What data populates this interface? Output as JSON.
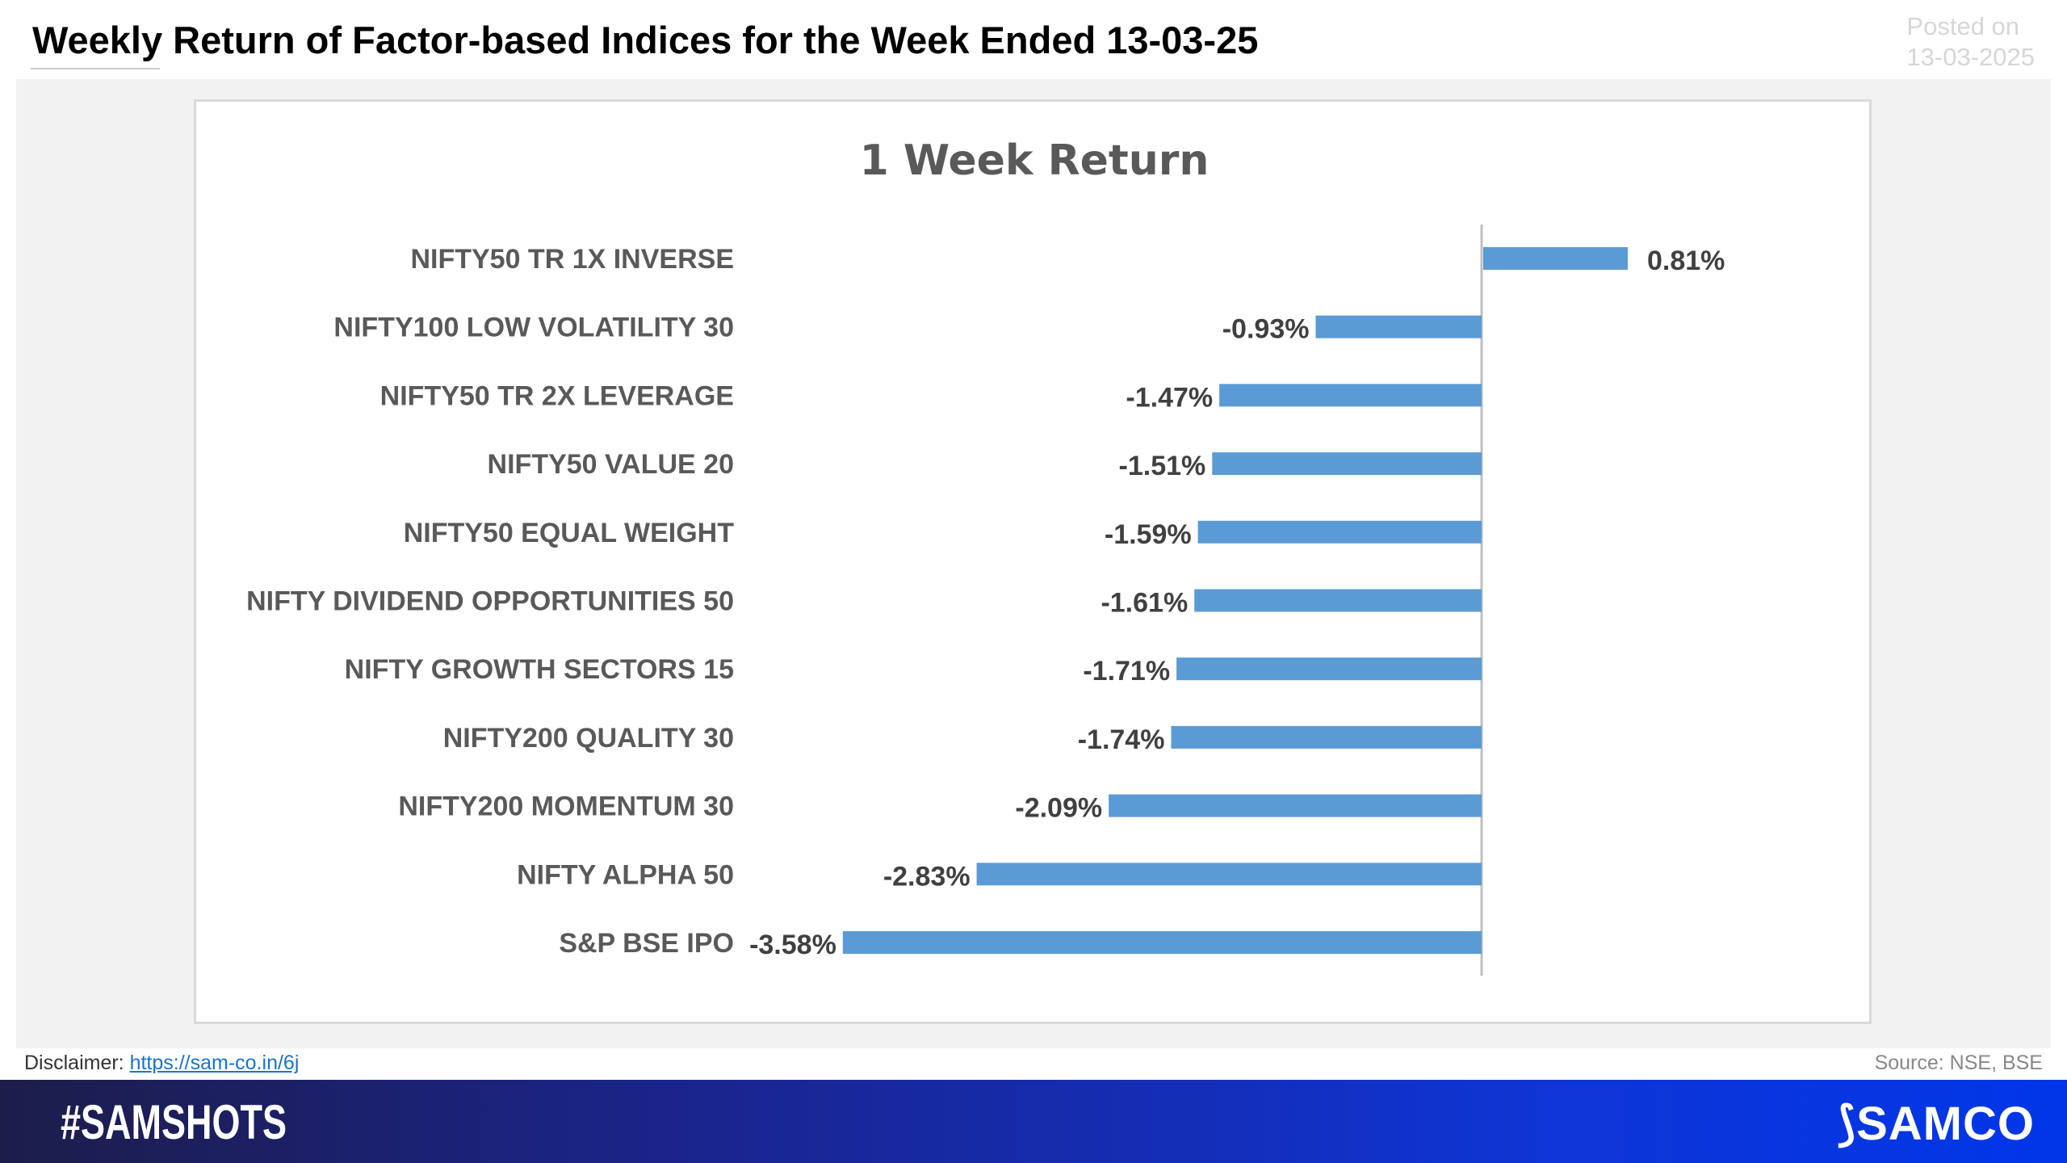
{
  "header": {
    "title": "Weekly Return of Factor-based Indices for the Week Ended 13-03-25",
    "posted_label": "Posted on",
    "posted_date": "13-03-2025"
  },
  "footer": {
    "disclaimer_label": "Disclaimer:",
    "disclaimer_link": "https://sam-co.in/6j",
    "source": "Source: NSE, BSE",
    "hashtag": "#SAMSHOTS",
    "logo": "SAMCO"
  },
  "colors": {
    "bar": "#5b9bd5",
    "panel": "#f2f2f2"
  },
  "chart_data": {
    "type": "bar",
    "orientation": "horizontal",
    "title": "1 Week Return",
    "xlabel": "",
    "ylabel": "",
    "categories": [
      "NIFTY50 TR 1X INVERSE",
      "NIFTY100 LOW VOLATILITY 30",
      "NIFTY50 TR 2X LEVERAGE",
      "NIFTY50 VALUE 20",
      "NIFTY50 EQUAL WEIGHT",
      "NIFTY DIVIDEND OPPORTUNITIES 50",
      "NIFTY GROWTH SECTORS 15",
      "NIFTY200 QUALITY 30",
      "NIFTY200 MOMENTUM 30",
      "NIFTY ALPHA 50",
      "S&P BSE IPO"
    ],
    "values": [
      0.81,
      -0.93,
      -1.47,
      -1.51,
      -1.59,
      -1.61,
      -1.71,
      -1.74,
      -2.09,
      -2.83,
      -3.58
    ],
    "labels": [
      "0.81%",
      "-0.93%",
      "-1.47%",
      "-1.51%",
      "-1.59%",
      "-1.61%",
      "-1.71%",
      "-1.74%",
      "-2.09%",
      "-2.83%",
      "-3.58%"
    ],
    "grid": false,
    "legend": "none"
  }
}
